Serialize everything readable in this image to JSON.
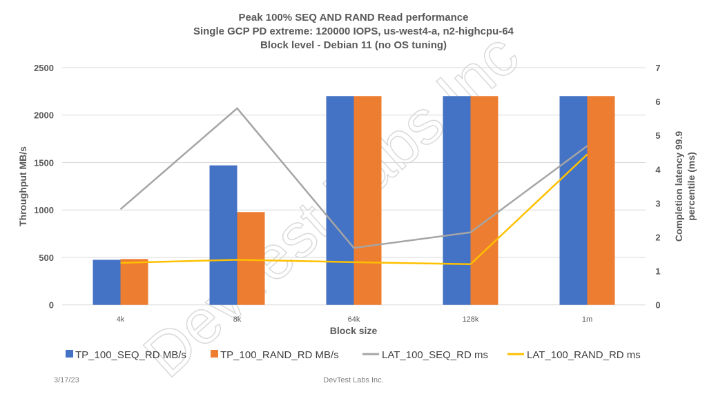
{
  "chart_data": {
    "type": "bar+line",
    "title": [
      "Peak  100% SEQ AND RAND Read performance",
      "Single GCP PD extreme: 120000 IOPS, us-west4-a, n2-highcpu-64",
      "Block level - Debian 11 (no OS tuning)"
    ],
    "xlabel": "Block size",
    "ylabel": "Throughput MB/s",
    "y2label": [
      "Completion latency 99.9",
      "percentile (ms)"
    ],
    "categories": [
      "4k",
      "8k",
      "64k",
      "128k",
      "1m"
    ],
    "ylim": [
      0,
      2500
    ],
    "yticks": [
      0,
      500,
      1000,
      1500,
      2000,
      2500
    ],
    "y2lim": [
      0,
      7
    ],
    "y2ticks": [
      0,
      1,
      2,
      3,
      4,
      5,
      6,
      7
    ],
    "grid": true,
    "legend_position": "bottom",
    "series": [
      {
        "name": "TP_100_SEQ_RD MB/s",
        "kind": "bar",
        "axis": "left",
        "color": "#4472C4",
        "values": [
          475,
          1470,
          2200,
          2200,
          2200
        ]
      },
      {
        "name": "TP_100_RAND_RD MB/s",
        "kind": "bar",
        "axis": "left",
        "color": "#ED7D31",
        "values": [
          483,
          978,
          2200,
          2200,
          2200
        ]
      },
      {
        "name": "LAT_100_SEQ_RD ms",
        "kind": "line",
        "axis": "right",
        "color": "#A5A5A5",
        "values": [
          2.82,
          5.8,
          1.68,
          2.14,
          4.69
        ]
      },
      {
        "name": "LAT_100_RAND_RD ms",
        "kind": "line",
        "axis": "right",
        "color": "#FFC000",
        "values": [
          1.24,
          1.33,
          1.26,
          1.2,
          4.44
        ]
      }
    ]
  },
  "footer": {
    "date": "3/17/23",
    "company": "DevTest Labs Inc."
  },
  "watermark": "DevTest Labs Inc"
}
